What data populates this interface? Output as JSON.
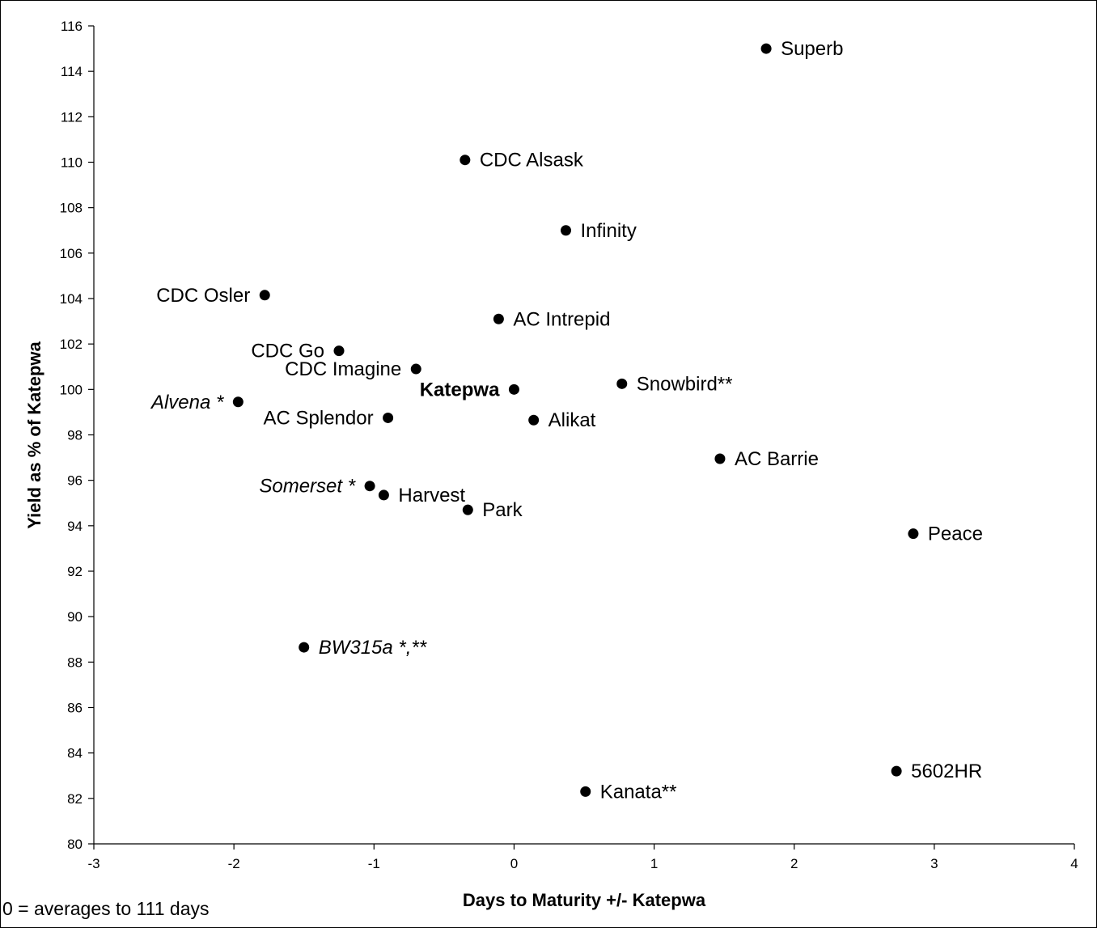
{
  "chart_data": {
    "type": "scatter",
    "title": "",
    "xlabel": "Days to Maturity +/- Katepwa",
    "ylabel": "Yield as % of Katepwa",
    "xlim": [
      -3,
      4
    ],
    "ylim": [
      80,
      116
    ],
    "x_ticks": [
      -3,
      -2,
      -1,
      0,
      1,
      2,
      3,
      4
    ],
    "y_ticks": [
      80,
      82,
      84,
      86,
      88,
      90,
      92,
      94,
      96,
      98,
      100,
      102,
      104,
      106,
      108,
      110,
      112,
      114,
      116
    ],
    "grid": false,
    "note": "0 = averages to 111 days",
    "points": [
      {
        "label": "Superb",
        "x": 1.8,
        "y": 115.0,
        "italic": false,
        "bold": false,
        "label_side": "right"
      },
      {
        "label": "CDC Alsask",
        "x": -0.35,
        "y": 110.1,
        "italic": false,
        "bold": false,
        "label_side": "right"
      },
      {
        "label": "Infinity",
        "x": 0.37,
        "y": 107.0,
        "italic": false,
        "bold": false,
        "label_side": "right"
      },
      {
        "label": "CDC Osler",
        "x": -1.78,
        "y": 104.15,
        "italic": false,
        "bold": false,
        "label_side": "left"
      },
      {
        "label": "AC Intrepid",
        "x": -0.11,
        "y": 103.1,
        "italic": false,
        "bold": false,
        "label_side": "right"
      },
      {
        "label": "CDC Go",
        "x": -1.25,
        "y": 101.7,
        "italic": false,
        "bold": false,
        "label_side": "left"
      },
      {
        "label": "CDC Imagine",
        "x": -0.7,
        "y": 100.9,
        "italic": false,
        "bold": false,
        "label_side": "left"
      },
      {
        "label": "Katepwa",
        "x": 0.0,
        "y": 100.0,
        "italic": false,
        "bold": true,
        "label_side": "left"
      },
      {
        "label": "Snowbird**",
        "x": 0.77,
        "y": 100.25,
        "italic": false,
        "bold": false,
        "label_side": "right"
      },
      {
        "label": "Alvena *",
        "x": -1.97,
        "y": 99.45,
        "italic": true,
        "bold": false,
        "label_side": "left"
      },
      {
        "label": "AC Splendor",
        "x": -0.9,
        "y": 98.75,
        "italic": false,
        "bold": false,
        "label_side": "left"
      },
      {
        "label": "Alikat",
        "x": 0.14,
        "y": 98.65,
        "italic": false,
        "bold": false,
        "label_side": "right"
      },
      {
        "label": "AC Barrie",
        "x": 1.47,
        "y": 96.95,
        "italic": false,
        "bold": false,
        "label_side": "right"
      },
      {
        "label": "Somerset *",
        "x": -1.03,
        "y": 95.75,
        "italic": true,
        "bold": false,
        "label_side": "left"
      },
      {
        "label": "Harvest",
        "x": -0.93,
        "y": 95.35,
        "italic": false,
        "bold": false,
        "label_side": "right"
      },
      {
        "label": "Park",
        "x": -0.33,
        "y": 94.7,
        "italic": false,
        "bold": false,
        "label_side": "right"
      },
      {
        "label": "Peace",
        "x": 2.85,
        "y": 93.65,
        "italic": false,
        "bold": false,
        "label_side": "right"
      },
      {
        "label": "BW315a *,**",
        "x": -1.5,
        "y": 88.65,
        "italic": true,
        "bold": false,
        "label_side": "right"
      },
      {
        "label": "5602HR",
        "x": 2.73,
        "y": 83.2,
        "italic": false,
        "bold": false,
        "label_side": "right"
      },
      {
        "label": "Kanata**",
        "x": 0.51,
        "y": 82.3,
        "italic": false,
        "bold": false,
        "label_side": "right"
      }
    ]
  }
}
